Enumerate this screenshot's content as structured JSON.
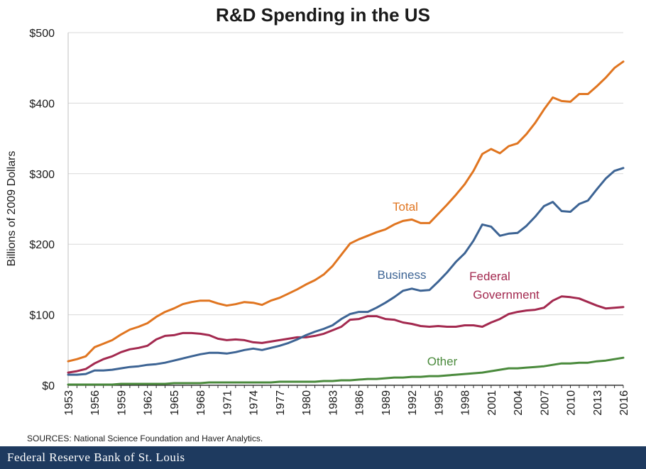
{
  "chart_data": {
    "type": "line",
    "title": "R&D Spending in the US",
    "xlabel": "",
    "ylabel": "Billions of 2009 Dollars",
    "ylim": [
      0,
      500
    ],
    "xlim": [
      1953,
      2016
    ],
    "y_ticks": [
      {
        "value": 0,
        "label": "$0"
      },
      {
        "value": 100,
        "label": "$100"
      },
      {
        "value": 200,
        "label": "$200"
      },
      {
        "value": 300,
        "label": "$300"
      },
      {
        "value": 400,
        "label": "$400"
      },
      {
        "value": 500,
        "label": "$500"
      }
    ],
    "x_ticks": [
      "1953",
      "1956",
      "1959",
      "1962",
      "1965",
      "1968",
      "1971",
      "1974",
      "1977",
      "1980",
      "1983",
      "1986",
      "1989",
      "1992",
      "1995",
      "1998",
      "2001",
      "2004",
      "2007",
      "2010",
      "2013",
      "2016"
    ],
    "x": [
      1953,
      1954,
      1955,
      1956,
      1957,
      1958,
      1959,
      1960,
      1961,
      1962,
      1963,
      1964,
      1965,
      1966,
      1967,
      1968,
      1969,
      1970,
      1971,
      1972,
      1973,
      1974,
      1975,
      1976,
      1977,
      1978,
      1979,
      1980,
      1981,
      1982,
      1983,
      1984,
      1985,
      1986,
      1987,
      1988,
      1989,
      1990,
      1991,
      1992,
      1993,
      1994,
      1995,
      1996,
      1997,
      1998,
      1999,
      2000,
      2001,
      2002,
      2003,
      2004,
      2005,
      2006,
      2007,
      2008,
      2009,
      2010,
      2011,
      2012,
      2013,
      2014,
      2015,
      2016
    ],
    "series": [
      {
        "name": "Total",
        "label_text": "Total",
        "color": "#e07520",
        "values": [
          34,
          37,
          41,
          54,
          59,
          64,
          72,
          79,
          83,
          88,
          97,
          104,
          109,
          115,
          118,
          120,
          120,
          116,
          113,
          115,
          118,
          117,
          114,
          120,
          124,
          130,
          136,
          143,
          149,
          157,
          169,
          185,
          201,
          207,
          212,
          217,
          221,
          228,
          233,
          235,
          230,
          230,
          243,
          256,
          270,
          285,
          304,
          328,
          335,
          329,
          339,
          343,
          356,
          372,
          391,
          408,
          403,
          402,
          413,
          413,
          424,
          436,
          450,
          459
        ]
      },
      {
        "name": "Business",
        "label_text": "Business",
        "color": "#3d6494",
        "values": [
          15,
          15,
          16,
          21,
          21,
          22,
          24,
          26,
          27,
          29,
          30,
          32,
          35,
          38,
          41,
          44,
          46,
          46,
          45,
          47,
          50,
          52,
          50,
          53,
          56,
          60,
          65,
          71,
          76,
          80,
          85,
          94,
          101,
          104,
          104,
          110,
          117,
          125,
          134,
          137,
          134,
          135,
          147,
          160,
          175,
          187,
          205,
          228,
          225,
          212,
          215,
          216,
          226,
          239,
          254,
          260,
          247,
          246,
          257,
          262,
          278,
          293,
          304,
          308
        ]
      },
      {
        "name": "Federal Government",
        "label_lines": [
          "Federal",
          "Government"
        ],
        "color": "#a3294f",
        "values": [
          18,
          20,
          23,
          31,
          37,
          41,
          47,
          51,
          53,
          56,
          65,
          70,
          71,
          74,
          74,
          73,
          71,
          66,
          64,
          65,
          64,
          61,
          60,
          62,
          64,
          66,
          68,
          68,
          70,
          73,
          78,
          83,
          93,
          94,
          98,
          98,
          94,
          93,
          89,
          87,
          84,
          83,
          84,
          83,
          83,
          85,
          85,
          83,
          89,
          94,
          101,
          104,
          106,
          107,
          110,
          120,
          126,
          125,
          123,
          118,
          113,
          109,
          110,
          111
        ]
      },
      {
        "name": "Other",
        "label_text": "Other",
        "color": "#4a8a3c",
        "values": [
          1,
          1,
          1,
          1,
          1,
          1,
          2,
          2,
          2,
          2,
          2,
          2,
          3,
          3,
          3,
          3,
          4,
          4,
          4,
          4,
          4,
          4,
          4,
          4,
          5,
          5,
          5,
          5,
          5,
          6,
          6,
          7,
          7,
          8,
          9,
          9,
          10,
          11,
          11,
          12,
          12,
          13,
          13,
          14,
          15,
          16,
          17,
          18,
          20,
          22,
          24,
          24,
          25,
          26,
          27,
          29,
          31,
          31,
          32,
          32,
          34,
          35,
          37,
          39
        ]
      }
    ]
  },
  "source_note": "SOURCES: National Science Foundation and Haver Analytics.",
  "footer": {
    "brand": "Federal Reserve Bank of St. Louis"
  }
}
